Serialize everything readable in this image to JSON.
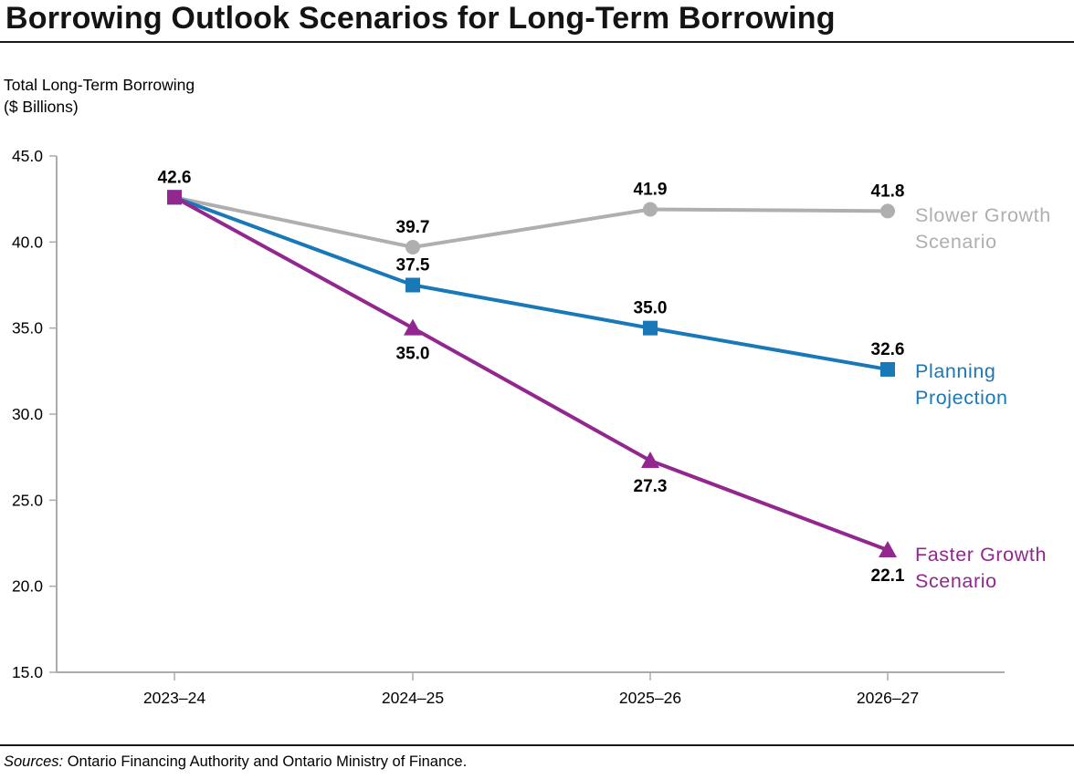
{
  "title": "Borrowing Outlook Scenarios for Long-Term Borrowing",
  "y_axis_title": {
    "line1": "Total Long-Term Borrowing",
    "line2": "($ Billions)"
  },
  "footer": {
    "sources_label": "Sources:",
    "sources_text": " Ontario Financing Authority and Ontario Ministry of Finance."
  },
  "chart_data": {
    "type": "line",
    "title": "Borrowing Outlook Scenarios for Long-Term Borrowing",
    "ylabel": "Total Long-Term Borrowing ($ Billions)",
    "xlabel": "",
    "categories": [
      "2023–24",
      "2024–25",
      "2025–26",
      "2026–27"
    ],
    "ylim": [
      15.0,
      45.0
    ],
    "ytick_step": 5.0,
    "ytick_labels": [
      "45.0",
      "40.0",
      "35.0",
      "30.0",
      "25.0",
      "20.0",
      "15.0"
    ],
    "grid": false,
    "legend_position": "right",
    "axis_color": "#ABABAB",
    "data_label_color": "#000000",
    "series": [
      {
        "name": "Slower Growth Scenario",
        "legend_line1": "Slower Growth",
        "legend_line2": "Scenario",
        "values": [
          42.6,
          39.7,
          41.9,
          41.8
        ],
        "color": "#AFAFAF",
        "marker": "circle",
        "label_positions": [
          "above",
          "above",
          "above",
          "above"
        ]
      },
      {
        "name": "Planning Projection",
        "legend_line1": "Planning",
        "legend_line2": "Projection",
        "values": [
          42.6,
          37.5,
          35.0,
          32.6
        ],
        "color": "#1878B8",
        "marker": "square",
        "label_positions": [
          null,
          "above",
          "above",
          "above"
        ]
      },
      {
        "name": "Faster Growth Scenario",
        "legend_line1": "Faster Growth",
        "legend_line2": "Scenario",
        "values": [
          42.6,
          35.0,
          27.3,
          22.1
        ],
        "color": "#92278F",
        "marker": "triangle",
        "first_point_marker": "square",
        "label_positions": [
          null,
          "below",
          "below",
          "below"
        ]
      }
    ]
  }
}
